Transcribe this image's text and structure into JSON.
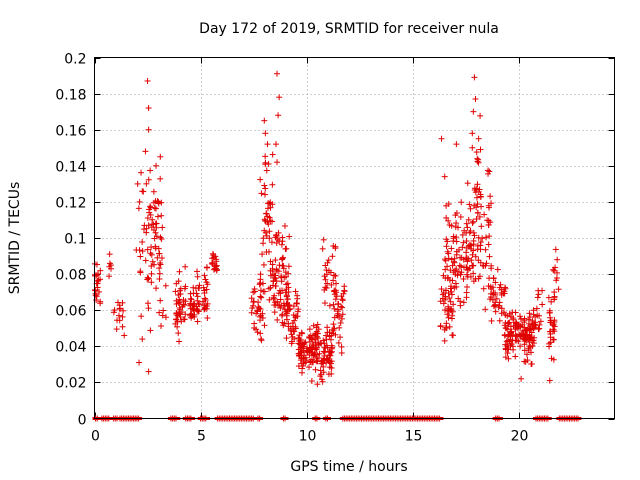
{
  "chart_data": {
    "type": "scatter",
    "title": "Day 172 of 2019, SRMTID for receiver nula",
    "xlabel": "GPS time / hours",
    "ylabel": "SRMTID / TECUs",
    "xlim": [
      0,
      24.5
    ],
    "ylim": [
      0,
      0.2
    ],
    "xticks": [
      0,
      5,
      10,
      15,
      20
    ],
    "yticks": [
      0,
      0.02,
      0.04,
      0.06,
      0.08,
      0.1,
      0.12,
      0.14,
      0.16,
      0.18,
      0.2
    ],
    "xtick_labels": [
      "0",
      "5",
      "10",
      "15",
      "20"
    ],
    "ytick_labels": [
      "0",
      "0.02",
      "0.04",
      "0.06",
      "0.08",
      "0.1",
      "0.12",
      "0.14",
      "0.16",
      "0.18",
      "0.2"
    ],
    "grid": true,
    "marker": "+",
    "series_color": "#e00000",
    "clusters": [
      {
        "x": [
          0.0,
          0.3
        ],
        "y_mean": 0.078,
        "y_spread": 0.012,
        "n": 22
      },
      {
        "x": [
          0.6,
          0.8
        ],
        "y_mean": 0.085,
        "y_spread": 0.006,
        "n": 6
      },
      {
        "x": [
          0.9,
          1.4
        ],
        "y_mean": 0.055,
        "y_spread": 0.008,
        "n": 14
      },
      {
        "x": [
          1.9,
          2.2
        ],
        "y_mean": 0.075,
        "y_spread": 0.02,
        "n": 6
      },
      {
        "x": [
          2.0,
          2.4
        ],
        "y_mean": 0.12,
        "y_spread": 0.018,
        "n": 10
      },
      {
        "x": [
          2.4,
          3.2
        ],
        "y_mean": 0.1,
        "y_spread": 0.03,
        "n": 70
      },
      {
        "x": [
          3.2,
          3.4
        ],
        "y_mean": 0.06,
        "y_spread": 0.01,
        "n": 4
      },
      {
        "x": [
          3.8,
          4.3
        ],
        "y_mean": 0.062,
        "y_spread": 0.012,
        "n": 45
      },
      {
        "x": [
          4.5,
          5.0
        ],
        "y_mean": 0.066,
        "y_spread": 0.01,
        "n": 40
      },
      {
        "x": [
          5.1,
          5.4
        ],
        "y_mean": 0.065,
        "y_spread": 0.012,
        "n": 22
      },
      {
        "x": [
          5.5,
          5.8
        ],
        "y_mean": 0.086,
        "y_spread": 0.006,
        "n": 18
      },
      {
        "x": [
          7.4,
          8.0
        ],
        "y_mean": 0.06,
        "y_spread": 0.012,
        "n": 30
      },
      {
        "x": [
          7.8,
          8.4
        ],
        "y_mean": 0.1,
        "y_spread": 0.03,
        "n": 60
      },
      {
        "x": [
          8.4,
          9.2
        ],
        "y_mean": 0.078,
        "y_spread": 0.018,
        "n": 80
      },
      {
        "x": [
          9.0,
          9.6
        ],
        "y_mean": 0.058,
        "y_spread": 0.012,
        "n": 45
      },
      {
        "x": [
          9.6,
          10.6
        ],
        "y_mean": 0.038,
        "y_spread": 0.01,
        "n": 110
      },
      {
        "x": [
          10.6,
          11.2
        ],
        "y_mean": 0.035,
        "y_spread": 0.01,
        "n": 55
      },
      {
        "x": [
          10.8,
          11.4
        ],
        "y_mean": 0.075,
        "y_spread": 0.014,
        "n": 30
      },
      {
        "x": [
          11.2,
          11.8
        ],
        "y_mean": 0.056,
        "y_spread": 0.012,
        "n": 35
      },
      {
        "x": [
          16.3,
          16.9
        ],
        "y_mean": 0.06,
        "y_spread": 0.012,
        "n": 30
      },
      {
        "x": [
          16.5,
          17.6
        ],
        "y_mean": 0.09,
        "y_spread": 0.022,
        "n": 90
      },
      {
        "x": [
          17.5,
          18.7
        ],
        "y_mean": 0.1,
        "y_spread": 0.025,
        "n": 90
      },
      {
        "x": [
          18.0,
          18.5
        ],
        "y_mean": 0.135,
        "y_spread": 0.02,
        "n": 14
      },
      {
        "x": [
          18.6,
          19.4
        ],
        "y_mean": 0.068,
        "y_spread": 0.01,
        "n": 40
      },
      {
        "x": [
          19.3,
          20.8
        ],
        "y_mean": 0.046,
        "y_spread": 0.01,
        "n": 150
      },
      {
        "x": [
          20.8,
          21.1
        ],
        "y_mean": 0.06,
        "y_spread": 0.015,
        "n": 12
      },
      {
        "x": [
          21.4,
          21.7
        ],
        "y_mean": 0.05,
        "y_spread": 0.012,
        "n": 30
      },
      {
        "x": [
          21.6,
          21.9
        ],
        "y_mean": 0.08,
        "y_spread": 0.008,
        "n": 10
      }
    ],
    "peaks": [
      {
        "x": 2.5,
        "y": 0.187
      },
      {
        "x": 2.55,
        "y": 0.172
      },
      {
        "x": 2.55,
        "y": 0.16
      },
      {
        "x": 2.4,
        "y": 0.148
      },
      {
        "x": 2.9,
        "y": 0.14
      },
      {
        "x": 3.1,
        "y": 0.145
      },
      {
        "x": 2.55,
        "y": 0.026
      },
      {
        "x": 2.25,
        "y": 0.044
      },
      {
        "x": 2.1,
        "y": 0.031
      },
      {
        "x": 1.4,
        "y": 0.046
      },
      {
        "x": 8.6,
        "y": 0.191
      },
      {
        "x": 8.7,
        "y": 0.178
      },
      {
        "x": 8.65,
        "y": 0.168
      },
      {
        "x": 8.0,
        "y": 0.165
      },
      {
        "x": 8.05,
        "y": 0.158
      },
      {
        "x": 8.15,
        "y": 0.152
      },
      {
        "x": 8.6,
        "y": 0.142
      },
      {
        "x": 8.55,
        "y": 0.152
      },
      {
        "x": 10.8,
        "y": 0.099
      },
      {
        "x": 10.75,
        "y": 0.094
      },
      {
        "x": 10.5,
        "y": 0.019
      },
      {
        "x": 17.9,
        "y": 0.189
      },
      {
        "x": 17.95,
        "y": 0.177
      },
      {
        "x": 17.85,
        "y": 0.17
      },
      {
        "x": 17.8,
        "y": 0.158
      },
      {
        "x": 17.8,
        "y": 0.15
      },
      {
        "x": 16.35,
        "y": 0.155
      },
      {
        "x": 17.05,
        "y": 0.152
      },
      {
        "x": 16.5,
        "y": 0.134
      },
      {
        "x": 16.5,
        "y": 0.043
      },
      {
        "x": 20.1,
        "y": 0.022
      },
      {
        "x": 21.45,
        "y": 0.021
      },
      {
        "x": 21.8,
        "y": 0.088
      }
    ],
    "zero_row": {
      "y": 0,
      "x_ranges": [
        [
          0.05,
          0.15
        ],
        [
          0.35,
          0.7
        ],
        [
          0.9,
          1.1
        ],
        [
          1.2,
          2.1
        ],
        [
          3.6,
          3.9
        ],
        [
          4.3,
          4.6
        ],
        [
          5.0,
          5.3
        ],
        [
          5.8,
          7.5
        ],
        [
          7.7,
          7.8
        ],
        [
          8.9,
          9.0
        ],
        [
          10.4,
          10.5
        ],
        [
          10.9,
          11.0
        ],
        [
          11.7,
          16.3
        ],
        [
          18.9,
          19.1
        ],
        [
          20.8,
          21.4
        ],
        [
          21.9,
          22.8
        ]
      ]
    }
  }
}
